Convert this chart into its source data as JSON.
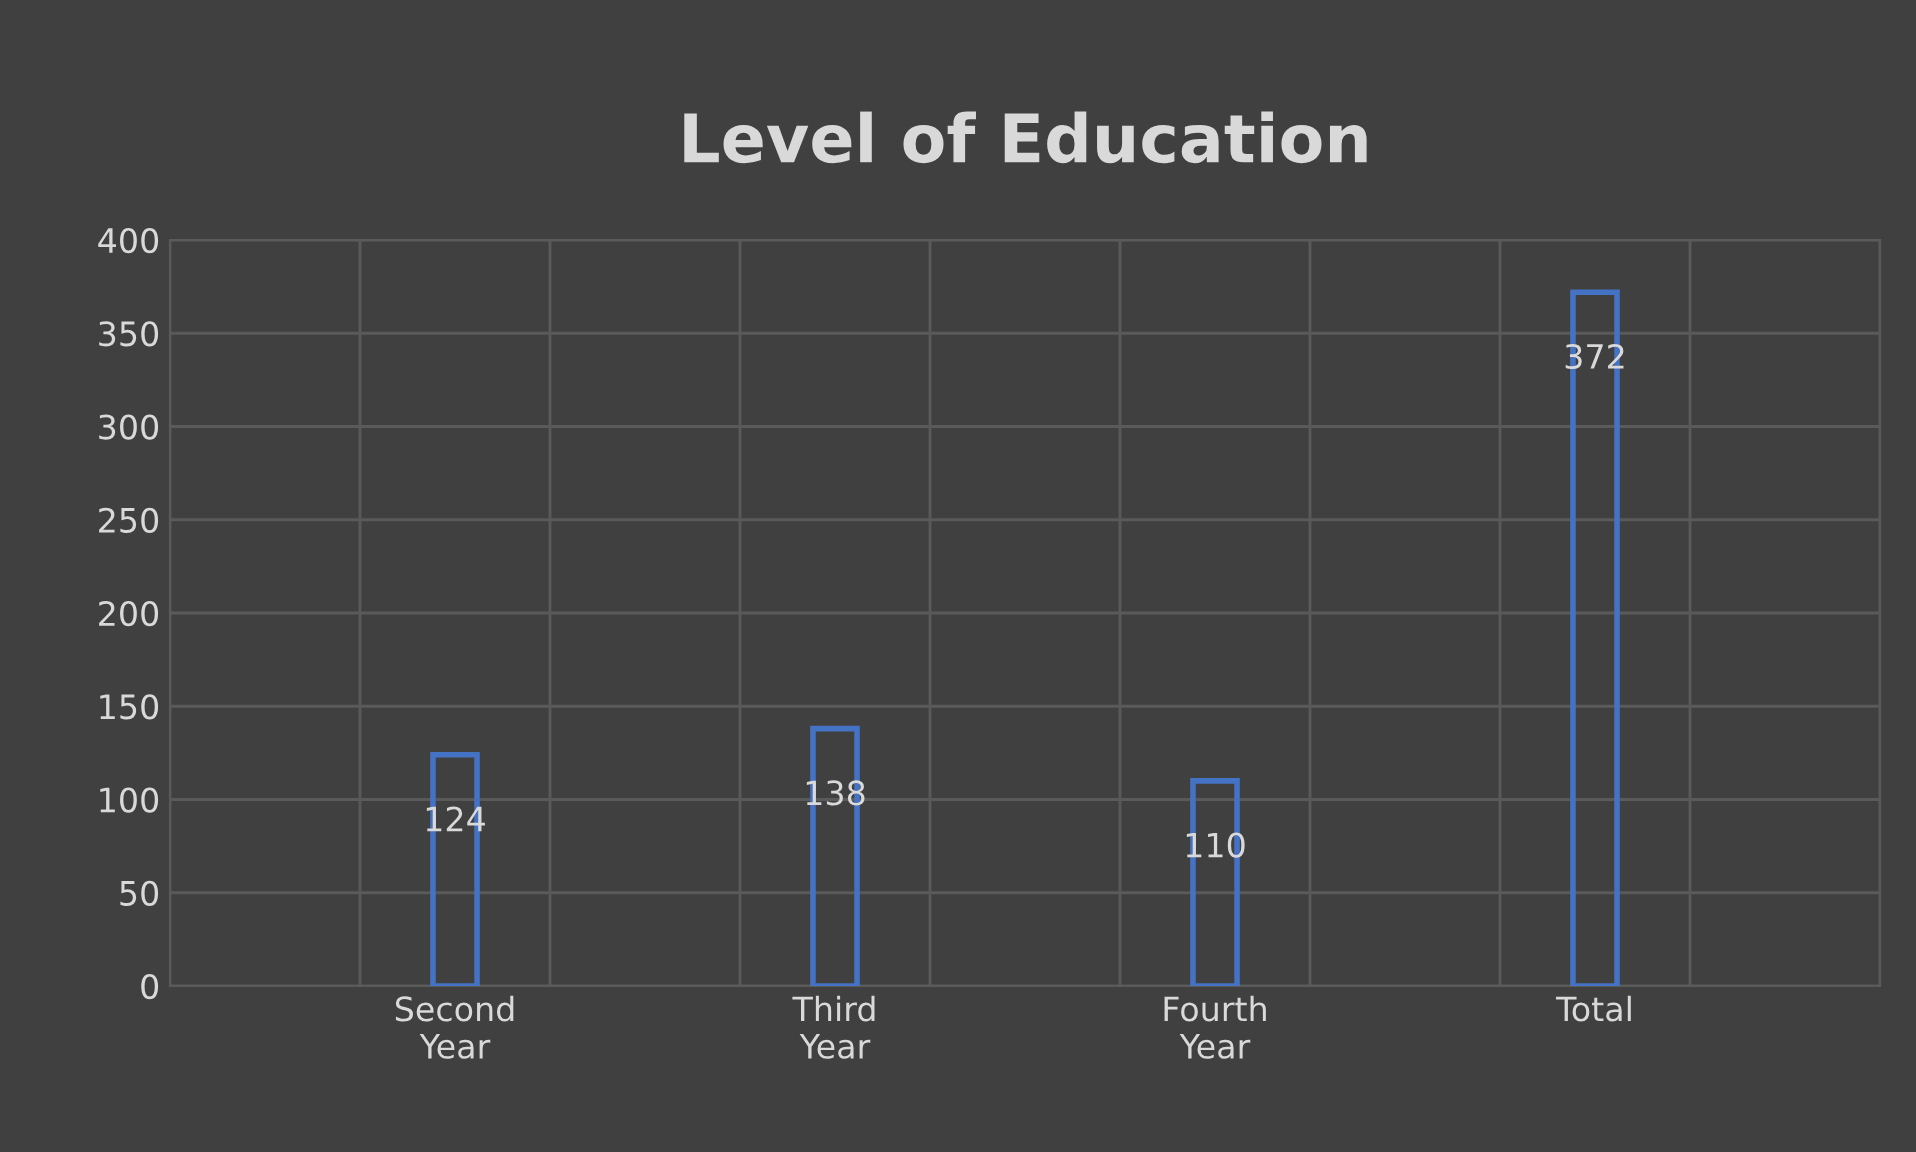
{
  "chart_data": {
    "type": "bar",
    "title": "Level of Education",
    "categories": [
      "Second\nYear",
      "Third\nYear",
      "Fourth\nYear",
      "Total"
    ],
    "values": [
      124,
      138,
      110,
      372
    ],
    "color": "#4472c4",
    "ylim": [
      0,
      400
    ],
    "yticks": [
      0,
      50,
      100,
      150,
      200,
      250,
      300,
      350,
      400
    ],
    "grid": true,
    "data_labels": true
  }
}
